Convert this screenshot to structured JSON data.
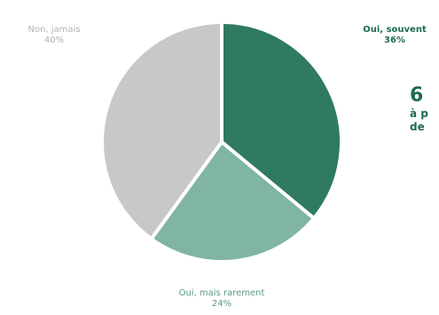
{
  "chart_data": {
    "type": "pie",
    "slices": [
      {
        "label": "Oui, souvent",
        "value": 36,
        "display": "36%",
        "color": "#2f7a60"
      },
      {
        "label": "Oui, mais rarement",
        "value": 24,
        "display": "24%",
        "color": "#7fb5a2"
      },
      {
        "label": "Non, jamais",
        "value": 40,
        "display": "40%",
        "color": "#c8c8c8"
      }
    ]
  },
  "callout": {
    "big": "6",
    "line1": "à p",
    "line2": "de"
  }
}
